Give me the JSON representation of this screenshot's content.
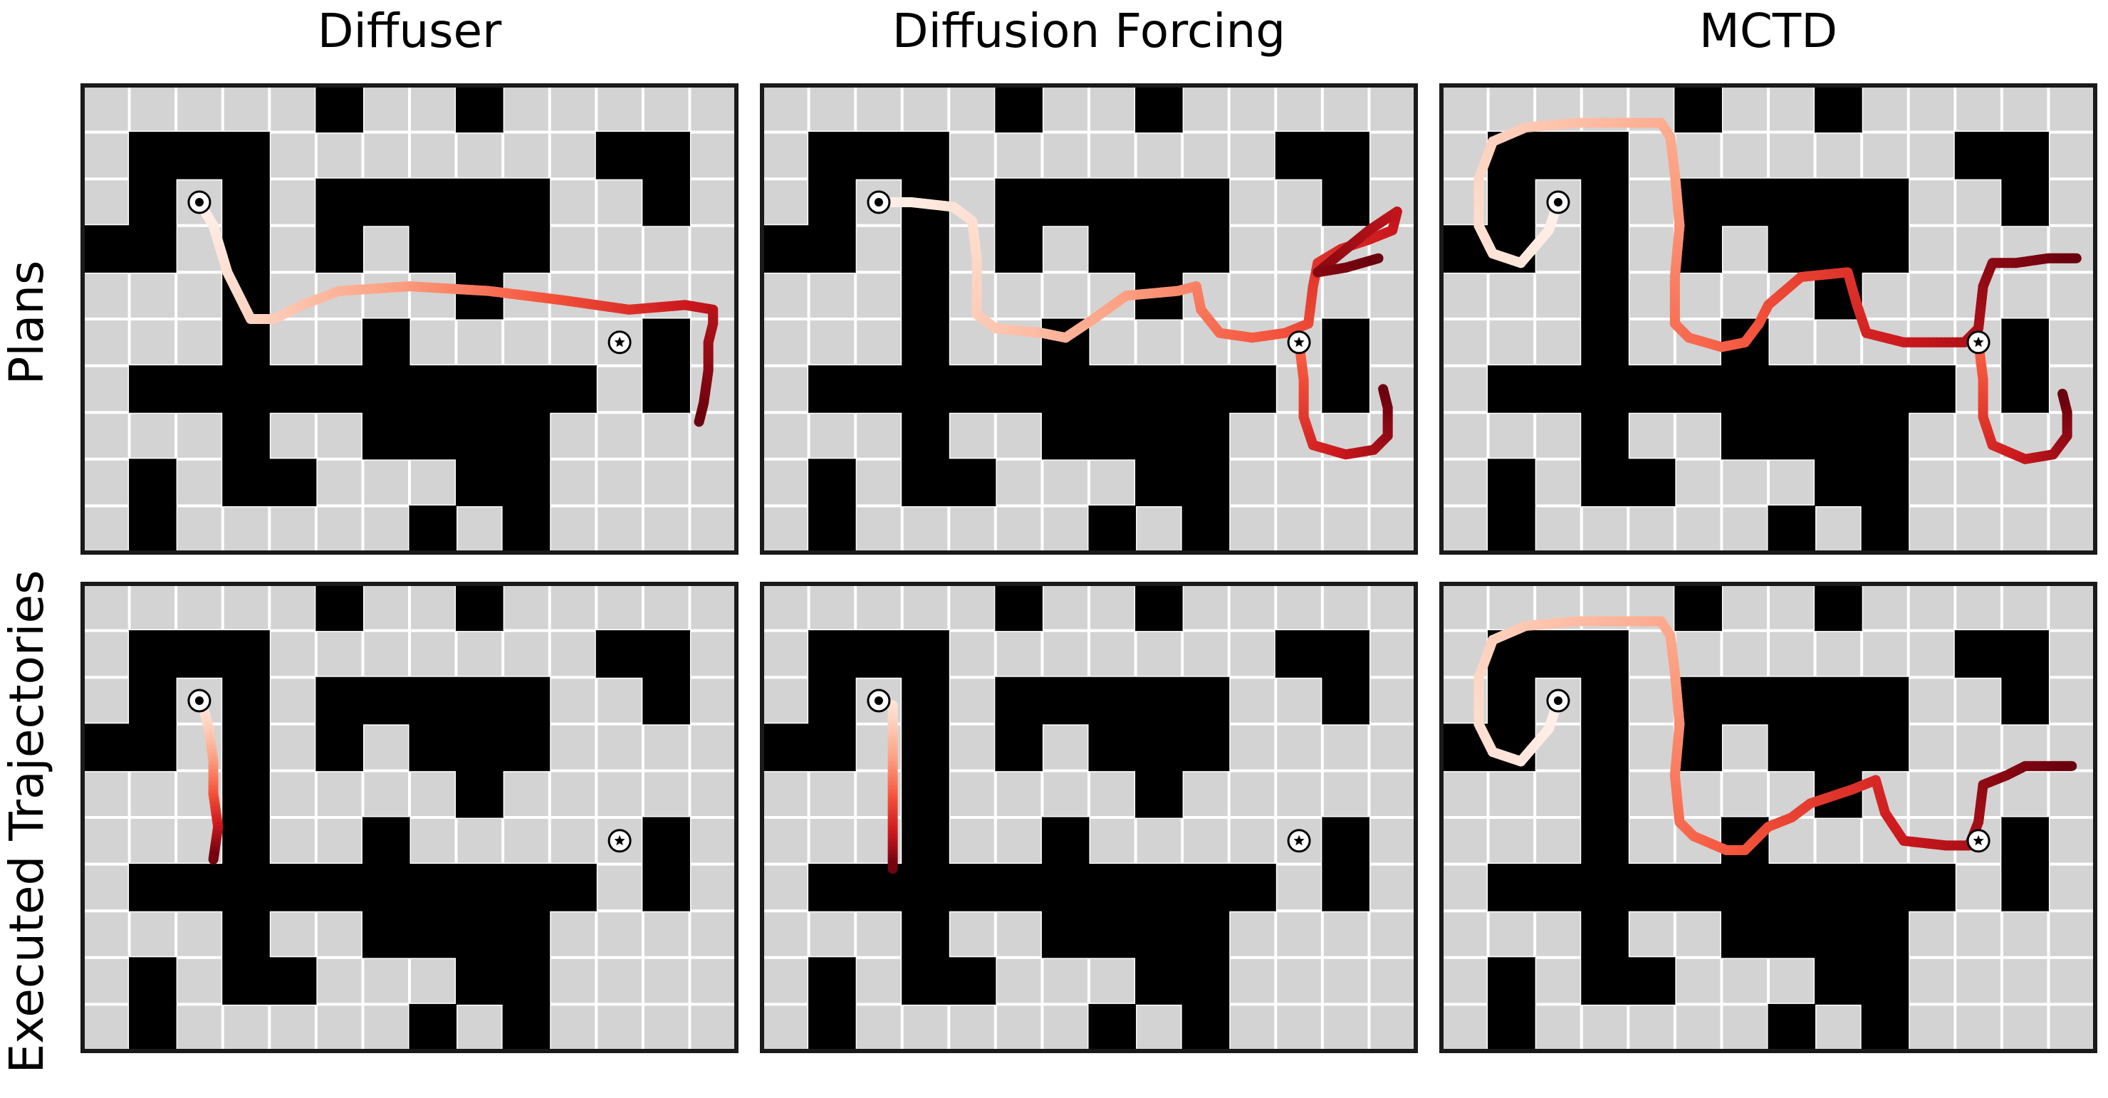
{
  "columns": [
    "Diffuser",
    "Diffusion Forcing",
    "MCTD"
  ],
  "rows": [
    "Plans",
    "Executed Trajectories"
  ],
  "maze": {
    "rows": 10,
    "cols": 14,
    "walls": [
      "00000100100000",
      "01110000000110",
      "01010111110010",
      "11010101110000",
      "00010000100000",
      "00010010000010",
      "01111111111010",
      "00010011110000",
      "01011000110000",
      "01000001010000"
    ],
    "start": {
      "row": 2,
      "col": 2
    },
    "goal": {
      "row": 5,
      "col": 11
    }
  },
  "colors": {
    "wall": "#000000",
    "floor": "#d3d3d3",
    "grid_line": "#ffffff",
    "frame": "#1a1a1a",
    "trajectory_colormap": [
      "#fff2ec",
      "#fdd0bc",
      "#fc9f81",
      "#f5553c",
      "#cb181d",
      "#67000d"
    ]
  },
  "panels": [
    {
      "name": "diffuser-plans",
      "row": 0,
      "col": 0,
      "paths": [
        [
          [
            2,
            2
          ],
          [
            2.5,
            2.3
          ],
          [
            3.5,
            2.6
          ],
          [
            4.5,
            3.1
          ],
          [
            4.5,
            3.6
          ],
          [
            4.2,
            4.2
          ],
          [
            3.9,
            5.0
          ],
          [
            3.8,
            6.5
          ],
          [
            3.9,
            8.2
          ],
          [
            4.1,
            9.8
          ],
          [
            4.3,
            11.2
          ],
          [
            4.2,
            12.4
          ],
          [
            4.3,
            13.0
          ],
          [
            4.6,
            13.0
          ],
          [
            5.0,
            12.9
          ],
          [
            5.6,
            12.9
          ],
          [
            6.3,
            12.8
          ],
          [
            6.7,
            12.7
          ]
        ]
      ]
    },
    {
      "name": "diffusion-forcing-plans",
      "row": 0,
      "col": 1,
      "paths": [
        [
          [
            2,
            2
          ],
          [
            2.0,
            2.7
          ],
          [
            2.1,
            3.6
          ],
          [
            2.4,
            4.0
          ],
          [
            3.2,
            4.1
          ],
          [
            4.4,
            4.1
          ],
          [
            4.7,
            4.5
          ],
          [
            4.8,
            5.5
          ],
          [
            4.9,
            6.0
          ],
          [
            4.5,
            6.6
          ],
          [
            4.0,
            7.3
          ],
          [
            3.9,
            8.4
          ],
          [
            3.8,
            8.8
          ],
          [
            4.3,
            8.9
          ],
          [
            4.8,
            9.3
          ],
          [
            4.9,
            10.0
          ],
          [
            4.8,
            10.7
          ],
          [
            4.6,
            11.2
          ],
          [
            3.8,
            11.3
          ],
          [
            3.3,
            11.4
          ],
          [
            3.0,
            11.9
          ],
          [
            2.8,
            12.5
          ],
          [
            2.6,
            13.0
          ],
          [
            2.2,
            13.1
          ],
          [
            2.6,
            12.5
          ],
          [
            3.5,
            11.4
          ],
          [
            3.4,
            12.0
          ],
          [
            3.2,
            12.7
          ]
        ],
        [
          [
            5,
            11
          ],
          [
            5.8,
            11.1
          ],
          [
            6.6,
            11.1
          ],
          [
            7.2,
            11.3
          ],
          [
            7.4,
            12.0
          ],
          [
            7.3,
            12.6
          ],
          [
            7.0,
            12.9
          ],
          [
            6.4,
            12.9
          ],
          [
            6.0,
            12.8
          ]
        ]
      ]
    },
    {
      "name": "mcts-plans",
      "row": 0,
      "col": 2,
      "paths": [
        [
          [
            2,
            2
          ],
          [
            2.6,
            1.8
          ],
          [
            3.3,
            1.2
          ],
          [
            3.1,
            0.6
          ],
          [
            2.5,
            0.3
          ],
          [
            1.5,
            0.3
          ],
          [
            0.7,
            0.6
          ],
          [
            0.4,
            1.3
          ],
          [
            0.3,
            2.4
          ],
          [
            0.3,
            3.4
          ],
          [
            0.3,
            4.2
          ],
          [
            0.6,
            4.4
          ],
          [
            1.4,
            4.5
          ],
          [
            2.5,
            4.6
          ],
          [
            3.6,
            4.5
          ],
          [
            4.6,
            4.5
          ],
          [
            4.9,
            4.8
          ],
          [
            5.1,
            5.5
          ],
          [
            5.0,
            6.0
          ],
          [
            4.6,
            6.3
          ],
          [
            4.2,
            6.5
          ],
          [
            3.6,
            7.2
          ],
          [
            3.5,
            8.2
          ],
          [
            4.2,
            8.4
          ],
          [
            4.8,
            8.6
          ],
          [
            5.0,
            9.4
          ],
          [
            5.0,
            10.2
          ],
          [
            5.0,
            10.7
          ],
          [
            4.7,
            11.0
          ],
          [
            3.8,
            11.1
          ],
          [
            3.3,
            11.3
          ],
          [
            3.3,
            11.8
          ],
          [
            3.2,
            12.5
          ],
          [
            3.2,
            13.1
          ]
        ],
        [
          [
            5,
            11
          ],
          [
            5.8,
            11.1
          ],
          [
            6.6,
            11.1
          ],
          [
            7.2,
            11.3
          ],
          [
            7.5,
            12.0
          ],
          [
            7.4,
            12.6
          ],
          [
            7.0,
            12.9
          ],
          [
            6.5,
            12.9
          ],
          [
            6.1,
            12.8
          ]
        ]
      ]
    },
    {
      "name": "diffuser-executed",
      "row": 1,
      "col": 0,
      "paths": [
        [
          [
            2,
            2
          ],
          [
            2.2,
            2.1
          ],
          [
            2.6,
            2.2
          ],
          [
            3.3,
            2.3
          ],
          [
            4.0,
            2.3
          ],
          [
            4.7,
            2.4
          ],
          [
            5.4,
            2.3
          ]
        ]
      ]
    },
    {
      "name": "diffusion-forcing-executed",
      "row": 1,
      "col": 1,
      "paths": [
        [
          [
            2,
            2
          ],
          [
            2.1,
            2.3
          ],
          [
            2.6,
            2.3
          ],
          [
            3.3,
            2.3
          ],
          [
            4.0,
            2.3
          ],
          [
            4.6,
            2.3
          ],
          [
            5.3,
            2.3
          ],
          [
            5.6,
            2.3
          ]
        ]
      ]
    },
    {
      "name": "mcts-executed",
      "row": 1,
      "col": 2,
      "paths": [
        [
          [
            2,
            2
          ],
          [
            2.6,
            1.8
          ],
          [
            3.3,
            1.2
          ],
          [
            3.1,
            0.6
          ],
          [
            2.5,
            0.3
          ],
          [
            1.5,
            0.3
          ],
          [
            0.7,
            0.6
          ],
          [
            0.4,
            1.3
          ],
          [
            0.3,
            2.4
          ],
          [
            0.3,
            3.4
          ],
          [
            0.3,
            4.2
          ],
          [
            0.6,
            4.4
          ],
          [
            1.4,
            4.5
          ],
          [
            2.5,
            4.6
          ],
          [
            3.6,
            4.5
          ],
          [
            4.6,
            4.6
          ],
          [
            4.9,
            4.9
          ],
          [
            5.2,
            5.6
          ],
          [
            5.2,
            6.0
          ],
          [
            4.7,
            6.5
          ],
          [
            4.5,
            7.0
          ],
          [
            4.2,
            7.4
          ],
          [
            3.9,
            8.3
          ],
          [
            3.7,
            8.8
          ],
          [
            4.4,
            9.0
          ],
          [
            5.0,
            9.4
          ],
          [
            5.1,
            10.3
          ],
          [
            5.1,
            10.8
          ],
          [
            4.6,
            11.0
          ],
          [
            3.8,
            11.1
          ],
          [
            3.6,
            11.6
          ],
          [
            3.4,
            12.0
          ],
          [
            3.4,
            12.5
          ],
          [
            3.4,
            13.0
          ]
        ]
      ]
    }
  ]
}
